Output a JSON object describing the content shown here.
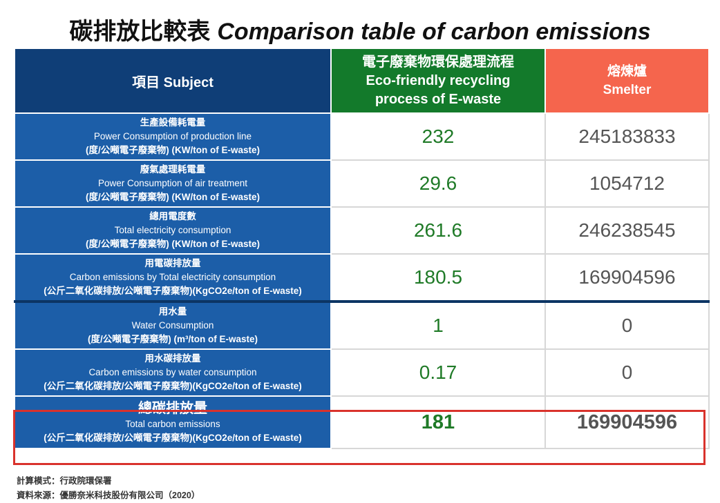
{
  "title": {
    "zh": "碳排放比較表",
    "en": "Comparison table of carbon emissions"
  },
  "header": {
    "subject": "項目 Subject",
    "ewaste_zh": "電子廢棄物環保處理流程",
    "ewaste_en_line1": "Eco-friendly recycling",
    "ewaste_en_line2": "process of E-waste",
    "smelter_zh": "熔煉爐",
    "smelter_en": "Smelter"
  },
  "rows": [
    {
      "zh": "生產設備耗電量",
      "en": "Power Consumption of production line",
      "unit": "(度/公噸電子廢棄物) (KW/ton of E-waste)",
      "ewaste": "232",
      "smelter": "245183833"
    },
    {
      "zh": "廢氣處理耗電量",
      "en": "Power Consumption of air treatment",
      "unit": "(度/公噸電子廢棄物) (KW/ton of E-waste)",
      "ewaste": "29.6",
      "smelter": "1054712"
    },
    {
      "zh": "總用電度數",
      "en": "Total electricity consumption",
      "unit": "(度/公噸電子廢棄物) (KW/ton of E-waste)",
      "ewaste": "261.6",
      "smelter": "246238545"
    },
    {
      "zh": "用電碳排放量",
      "en": "Carbon emissions by Total electricity consumption",
      "unit": "(公斤二氧化碳排放/公噸電子廢棄物)(KgCO2e/ton of E-waste)",
      "ewaste": "180.5",
      "smelter": "169904596"
    },
    {
      "zh": "用水量",
      "en": "Water Consumption",
      "unit": "(度/公噸電子廢棄物) (m³/ton of E-waste)",
      "ewaste": "1",
      "smelter": "0"
    },
    {
      "zh": "用水碳排放量",
      "en": "Carbon emissions by water consumption",
      "unit": "(公斤二氧化碳排放/公噸電子廢棄物)(KgCO2e/ton of E-waste)",
      "ewaste": "0.17",
      "smelter": "0"
    }
  ],
  "total": {
    "zh": "總碳排放量",
    "en": "Total carbon emissions",
    "unit": "(公斤二氧化碳排放/公噸電子廢棄物)(KgCO2e/ton of E-waste)",
    "ewaste": "181",
    "smelter": "169904596"
  },
  "notes": {
    "formula": "計算模式：行政院環保署",
    "source": "資料來源：優勝奈米科技股份有限公司（2020）"
  },
  "colors": {
    "header_blue": "#0f3e77",
    "label_blue": "#1c5ea8",
    "green_header": "#137a2b",
    "red_header": "#f5654d",
    "green_value": "#1f7a27",
    "total_highlight": "#d9322c"
  }
}
